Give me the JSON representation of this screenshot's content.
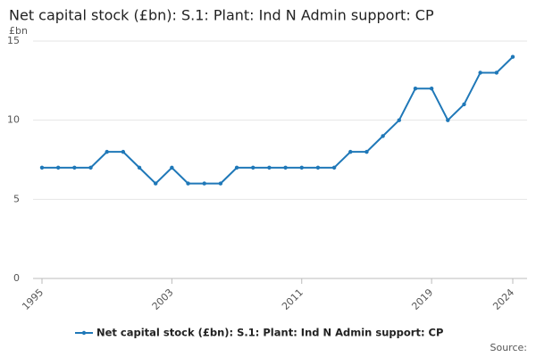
{
  "chart_data": {
    "type": "line",
    "title": "Net capital stock (£bn): S.1: Plant: Ind N Admin support: CP",
    "y_label": "£bn",
    "source": "Source:",
    "x": [
      1995,
      1996,
      1997,
      1998,
      1999,
      2000,
      2001,
      2002,
      2003,
      2004,
      2005,
      2006,
      2007,
      2008,
      2009,
      2010,
      2011,
      2012,
      2013,
      2014,
      2015,
      2016,
      2017,
      2018,
      2019,
      2020,
      2021,
      2022,
      2023,
      2024
    ],
    "series": [
      {
        "name": "Net capital stock (£bn): S.1: Plant: Ind N Admin support: CP",
        "color": "#1f78b8",
        "values": [
          7,
          7,
          7,
          7,
          8,
          8,
          7,
          6,
          7,
          6,
          6,
          6,
          7,
          7,
          7,
          7,
          7,
          7,
          7,
          8,
          8,
          9,
          10,
          12,
          12,
          10,
          11,
          13,
          13,
          14
        ]
      }
    ],
    "xlim": [
      1995,
      2024
    ],
    "xticks": [
      1995,
      2003,
      2011,
      2019,
      2024
    ],
    "ylim": [
      0,
      15
    ],
    "yticks": [
      0,
      5,
      10,
      15
    ],
    "grid": true
  }
}
